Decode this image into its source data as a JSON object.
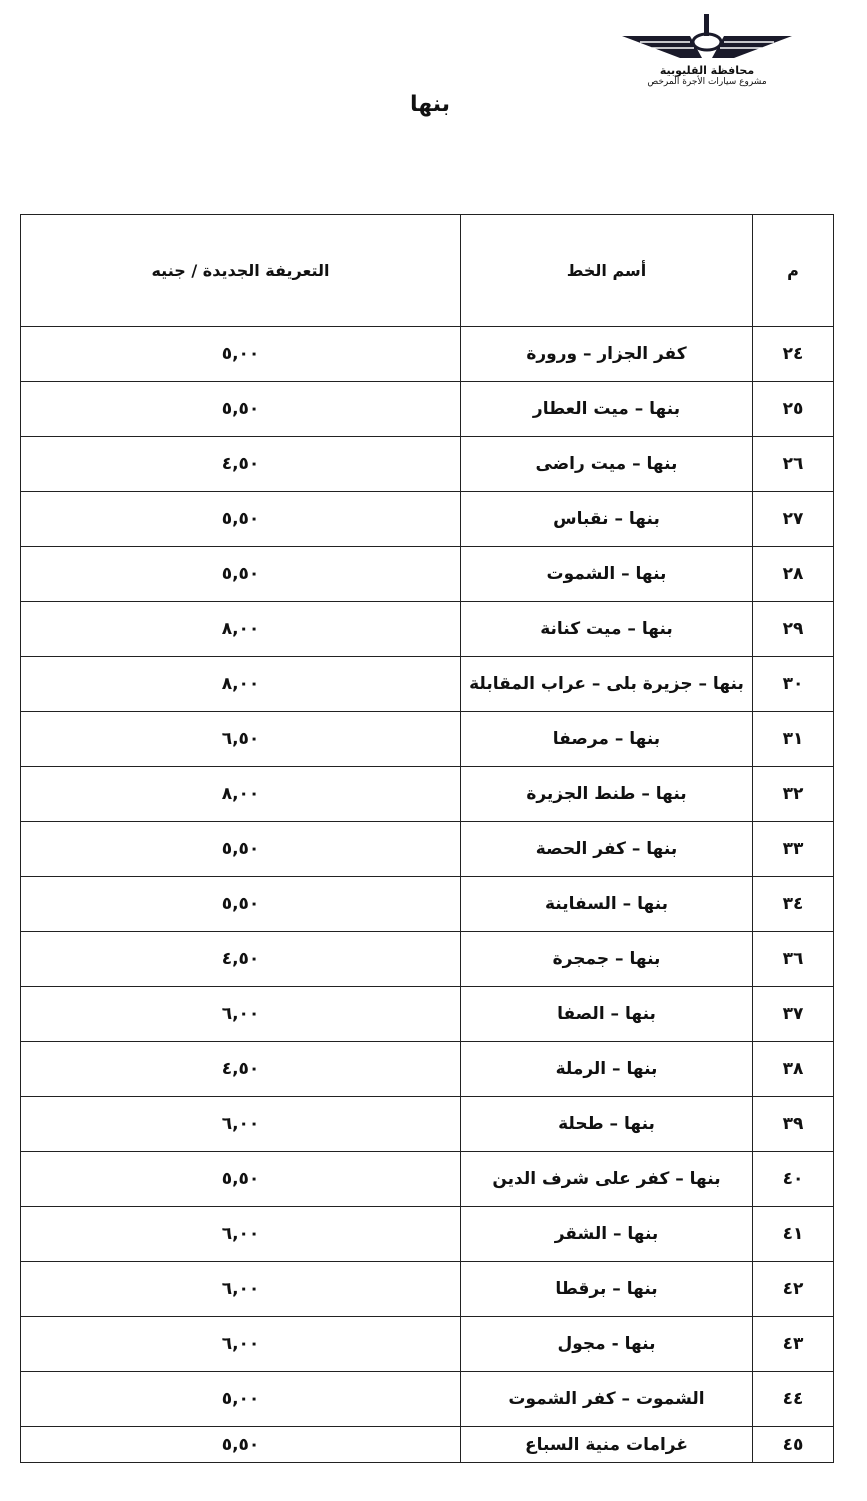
{
  "logo": {
    "line1": "محافظة القليوبية",
    "line2": "مشروع سيارات الأجرة المرخص"
  },
  "title": "بنها",
  "table": {
    "headers": [
      "م",
      "أسم الخط",
      "التعريفة الجديدة / جنيه"
    ],
    "rows": [
      {
        "num": "٢٤",
        "name": "كفر الجزار – ورورة",
        "fare": "٥,٠٠"
      },
      {
        "num": "٢٥",
        "name": "بنها – ميت العطار",
        "fare": "٥,٥٠"
      },
      {
        "num": "٢٦",
        "name": "بنها – ميت راضى",
        "fare": "٤,٥٠"
      },
      {
        "num": "٢٧",
        "name": "بنها – نقباس",
        "fare": "٥,٥٠"
      },
      {
        "num": "٢٨",
        "name": "بنها – الشموت",
        "fare": "٥,٥٠"
      },
      {
        "num": "٢٩",
        "name": "بنها – ميت كنانة",
        "fare": "٨,٠٠"
      },
      {
        "num": "٣٠",
        "name": "بنها – جزيرة بلى – عراب المقابلة",
        "fare": "٨,٠٠"
      },
      {
        "num": "٣١",
        "name": "بنها – مرصفا",
        "fare": "٦,٥٠"
      },
      {
        "num": "٣٢",
        "name": "بنها – طنط الجزيرة",
        "fare": "٨,٠٠"
      },
      {
        "num": "٣٣",
        "name": "بنها – كفر الحصة",
        "fare": "٥,٥٠"
      },
      {
        "num": "٣٤",
        "name": "بنها – السفاينة",
        "fare": "٥,٥٠"
      },
      {
        "num": "٣٦",
        "name": "بنها – جمجرة",
        "fare": "٤,٥٠"
      },
      {
        "num": "٣٧",
        "name": "بنها – الصفا",
        "fare": "٦,٠٠"
      },
      {
        "num": "٣٨",
        "name": "بنها – الرملة",
        "fare": "٤,٥٠"
      },
      {
        "num": "٣٩",
        "name": "بنها – طحلة",
        "fare": "٦,٠٠"
      },
      {
        "num": "٤٠",
        "name": "بنها – كفر على شرف الدين",
        "fare": "٥,٥٠"
      },
      {
        "num": "٤١",
        "name": "بنها – الشقر",
        "fare": "٦,٠٠"
      },
      {
        "num": "٤٢",
        "name": "بنها – برقطا",
        "fare": "٦,٠٠"
      },
      {
        "num": "٤٣",
        "name": "بنها - مجول",
        "fare": "٦,٠٠"
      },
      {
        "num": "٤٤",
        "name": "الشموت – كفر الشموت",
        "fare": "٥,٠٠"
      },
      {
        "num": "٤٥",
        "name": "غرامات منية السباع",
        "fare": "٥,٥٠"
      }
    ]
  }
}
